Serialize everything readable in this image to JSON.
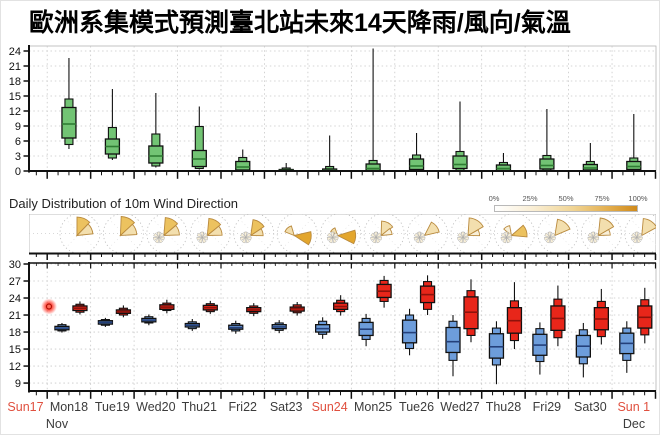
{
  "title": "歐洲系集模式預測臺北站未來14天降雨/風向/氣溫",
  "colors": {
    "precip_box": "#72c474",
    "precip_median": "#2f7d33",
    "temp_min": "#6d9ddb",
    "temp_min_median": "#24407a",
    "temp_max": "#e8261a",
    "temp_max_median": "#8e120b",
    "sunday_label": "#e0503f",
    "weekday_label": "#3c3c3c",
    "rose_lighter": "#f8efd8",
    "rose_light": "#f3dfae",
    "rose_mid": "#ecc25f",
    "rose_dark": "#e3a62d",
    "grid": "#c8c8c8",
    "obs_dot": "#ff2a1c"
  },
  "x_axis": {
    "days": [
      {
        "label": "Sun17",
        "sunday": true
      },
      {
        "label": "Mon18",
        "sunday": false
      },
      {
        "label": "Tue19",
        "sunday": false
      },
      {
        "label": "Wed20",
        "sunday": false
      },
      {
        "label": "Thu21",
        "sunday": false
      },
      {
        "label": "Fri22",
        "sunday": false
      },
      {
        "label": "Sat23",
        "sunday": false
      },
      {
        "label": "Sun24",
        "sunday": true
      },
      {
        "label": "Mon25",
        "sunday": false
      },
      {
        "label": "Tue26",
        "sunday": false
      },
      {
        "label": "Wed27",
        "sunday": false
      },
      {
        "label": "Thu28",
        "sunday": false
      },
      {
        "label": "Fri29",
        "sunday": false
      },
      {
        "label": "Sat30",
        "sunday": false
      },
      {
        "label": "Sun 1",
        "sunday": true
      }
    ],
    "month_left": "Nov",
    "month_right": "Dec"
  },
  "wind_panel": {
    "label": "Daily Distribution of 10m Wind Direction",
    "legend_labels": [
      "0%",
      "25%",
      "50%",
      "75%",
      "100%"
    ]
  },
  "chart_data": [
    {
      "type": "boxplot",
      "name": "ensemble-precipitation",
      "ylim": [
        0,
        24
      ],
      "yticks": [
        0,
        3,
        6,
        9,
        12,
        15,
        18,
        21,
        24
      ],
      "grid": true,
      "categories": [
        "Mon18",
        "Tue19",
        "Wed20",
        "Thu21",
        "Fri22",
        "Sat23",
        "Sun24",
        "Mon25",
        "Tue26",
        "Wed27",
        "Thu28",
        "Fri29",
        "Sat30",
        "Sun 1"
      ],
      "box_format": [
        "whisker_low",
        "p10",
        "p25",
        "median",
        "p75",
        "p90",
        "whisker_high"
      ],
      "boxes": [
        [
          4.4,
          5.3,
          6.6,
          9.4,
          12.7,
          14.4,
          22.6
        ],
        [
          2.2,
          2.6,
          3.4,
          4.9,
          6.4,
          8.7,
          16.4
        ],
        [
          0.7,
          1.0,
          1.6,
          3.0,
          5.0,
          7.4,
          15.6
        ],
        [
          0.3,
          0.5,
          0.9,
          2.4,
          4.1,
          8.9,
          12.9
        ],
        [
          0.0,
          0.0,
          0.2,
          0.8,
          1.9,
          2.7,
          4.3
        ],
        [
          0.0,
          0.0,
          0.0,
          0.1,
          0.3,
          0.6,
          1.6
        ],
        [
          0.0,
          0.0,
          0.0,
          0.1,
          0.4,
          0.9,
          7.1
        ],
        [
          0.0,
          0.0,
          0.1,
          0.5,
          1.4,
          2.1,
          24.5
        ],
        [
          0.0,
          0.0,
          0.3,
          1.0,
          2.4,
          3.2,
          7.6
        ],
        [
          0.0,
          0.1,
          0.5,
          1.3,
          3.0,
          3.9,
          13.9
        ],
        [
          0.0,
          0.0,
          0.1,
          0.5,
          1.2,
          1.7,
          3.6
        ],
        [
          0.0,
          0.1,
          0.4,
          1.1,
          2.4,
          3.1,
          12.4
        ],
        [
          0.0,
          0.0,
          0.2,
          0.6,
          1.3,
          1.9,
          5.6
        ],
        [
          0.0,
          0.1,
          0.3,
          0.9,
          1.9,
          2.6,
          11.4
        ]
      ]
    },
    {
      "type": "windrose",
      "name": "wind-direction-10m",
      "legend_range": [
        "0%",
        "100%"
      ],
      "days": [
        {
          "label": "Mon18",
          "rosette": false,
          "petals": [
            {
              "dir": 22,
              "spread": 44,
              "r": 0.92,
              "level": "mid"
            },
            {
              "dir": 64,
              "spread": 40,
              "r": 0.8,
              "level": "light"
            }
          ]
        },
        {
          "label": "Tue19",
          "rosette": false,
          "petals": [
            {
              "dir": 25,
              "spread": 45,
              "r": 0.95,
              "level": "mid"
            },
            {
              "dir": 67,
              "spread": 40,
              "r": 0.82,
              "level": "light"
            }
          ]
        },
        {
          "label": "Wed20",
          "rosette": true,
          "petals": [
            {
              "dir": 27,
              "spread": 45,
              "r": 0.9,
              "level": "mid"
            },
            {
              "dir": 69,
              "spread": 38,
              "r": 0.78,
              "level": "light"
            }
          ]
        },
        {
          "label": "Thu21",
          "rosette": true,
          "petals": [
            {
              "dir": 28,
              "spread": 45,
              "r": 0.86,
              "level": "mid"
            },
            {
              "dir": 70,
              "spread": 38,
              "r": 0.74,
              "level": "light"
            }
          ]
        },
        {
          "label": "Fri22",
          "rosette": true,
          "petals": [
            {
              "dir": 32,
              "spread": 48,
              "r": 0.8,
              "level": "mid"
            },
            {
              "dir": 74,
              "spread": 34,
              "r": 0.62,
              "level": "light"
            }
          ]
        },
        {
          "label": "Sat23",
          "rosette": false,
          "petals": [
            {
              "dir": 318,
              "spread": 52,
              "r": 0.5,
              "level": "light"
            },
            {
              "dir": 100,
              "spread": 46,
              "r": 0.85,
              "level": "dark"
            }
          ]
        },
        {
          "label": "Sun24",
          "rosette": true,
          "petals": [
            {
              "dir": 320,
              "spread": 42,
              "r": 0.4,
              "level": "light"
            },
            {
              "dir": 95,
              "spread": 44,
              "r": 0.9,
              "level": "dark"
            }
          ]
        },
        {
          "label": "Mon25",
          "rosette": true,
          "petals": [
            {
              "dir": 28,
              "spread": 52,
              "r": 0.72,
              "level": "light"
            },
            {
              "dir": 68,
              "spread": 34,
              "r": 0.55,
              "level": "lighter"
            }
          ]
        },
        {
          "label": "Tue26",
          "rosette": true,
          "petals": [
            {
              "dir": 52,
              "spread": 50,
              "r": 0.75,
              "level": "light"
            }
          ]
        },
        {
          "label": "Wed27",
          "rosette": true,
          "petals": [
            {
              "dir": 32,
              "spread": 56,
              "r": 0.88,
              "level": "light"
            },
            {
              "dir": 76,
              "spread": 30,
              "r": 0.58,
              "level": "lighter"
            }
          ]
        },
        {
          "label": "Thu28",
          "rosette": true,
          "petals": [
            {
              "dir": 330,
              "spread": 40,
              "r": 0.5,
              "level": "lighter"
            },
            {
              "dir": 72,
              "spread": 46,
              "r": 0.78,
              "level": "mid"
            }
          ]
        },
        {
          "label": "Fri29",
          "rosette": true,
          "petals": [
            {
              "dir": 38,
              "spread": 58,
              "r": 0.82,
              "level": "light"
            }
          ]
        },
        {
          "label": "Sat30",
          "rosette": true,
          "petals": [
            {
              "dir": 33,
              "spread": 54,
              "r": 0.88,
              "level": "light"
            },
            {
              "dir": 74,
              "spread": 28,
              "r": 0.6,
              "level": "lighter"
            }
          ]
        },
        {
          "label": "Sun 1",
          "rosette": true,
          "petals": [
            {
              "dir": 33,
              "spread": 56,
              "r": 0.85,
              "level": "light"
            }
          ]
        }
      ]
    },
    {
      "type": "boxplot",
      "name": "ensemble-temperature-2m",
      "ylim": [
        9,
        30
      ],
      "yticks": [
        9,
        12,
        15,
        18,
        21,
        24,
        27,
        30
      ],
      "grid": true,
      "categories": [
        "Sun17",
        "Mon18",
        "Tue19",
        "Wed20",
        "Thu21",
        "Fri22",
        "Sat23",
        "Sun24",
        "Mon25",
        "Tue26",
        "Wed27",
        "Thu28",
        "Fri29",
        "Sat30",
        "Sun 1"
      ],
      "box_format": [
        "whisker_low",
        "p10",
        "p25",
        "median",
        "p75",
        "p90",
        "whisker_high"
      ],
      "observation": {
        "day": "Sun17",
        "value": 22.5
      },
      "series": [
        {
          "name": "daily-min",
          "color": "#6d9ddb",
          "boxes": [
            null,
            [
              17.9,
              18.2,
              18.4,
              18.7,
              19.0,
              19.3,
              19.6
            ],
            [
              18.9,
              19.2,
              19.4,
              19.7,
              20.0,
              20.2,
              20.5
            ],
            [
              19.2,
              19.6,
              19.8,
              20.1,
              20.4,
              20.7,
              21.1
            ],
            [
              18.2,
              18.6,
              18.9,
              19.2,
              19.5,
              19.8,
              20.3
            ],
            [
              17.7,
              18.2,
              18.5,
              18.8,
              19.2,
              19.5,
              20.0
            ],
            [
              17.8,
              18.3,
              18.6,
              18.9,
              19.3,
              19.6,
              20.1
            ],
            [
              16.8,
              17.6,
              18.0,
              18.6,
              19.3,
              19.9,
              20.6
            ],
            [
              15.5,
              16.7,
              17.4,
              18.5,
              19.7,
              20.4,
              21.2
            ],
            [
              13.9,
              15.1,
              16.1,
              17.9,
              20.1,
              21.0,
              22.1
            ],
            [
              10.2,
              13.0,
              14.4,
              16.3,
              18.8,
              19.9,
              21.0
            ],
            [
              8.8,
              12.2,
              13.4,
              15.4,
              17.7,
              18.7,
              19.9
            ],
            [
              10.5,
              12.8,
              13.9,
              15.7,
              17.6,
              18.6,
              19.7
            ],
            [
              10.0,
              12.4,
              13.6,
              15.5,
              17.4,
              18.4,
              19.6
            ],
            [
              10.8,
              13.0,
              14.2,
              16.0,
              17.8,
              18.7,
              19.9
            ]
          ]
        },
        {
          "name": "daily-max",
          "color": "#e8261a",
          "boxes": [
            null,
            [
              21.1,
              21.5,
              21.8,
              22.2,
              22.6,
              22.9,
              23.4
            ],
            [
              20.6,
              21.0,
              21.3,
              21.6,
              21.9,
              22.2,
              22.7
            ],
            [
              21.3,
              21.8,
              22.0,
              22.4,
              22.8,
              23.1,
              23.7
            ],
            [
              21.2,
              21.6,
              21.9,
              22.3,
              22.7,
              23.0,
              23.5
            ],
            [
              20.8,
              21.3,
              21.6,
              21.9,
              22.3,
              22.6,
              23.1
            ],
            [
              20.9,
              21.4,
              21.7,
              22.1,
              22.4,
              22.8,
              23.3
            ],
            [
              20.9,
              21.6,
              22.0,
              22.5,
              23.1,
              23.6,
              24.5
            ],
            [
              22.3,
              23.4,
              24.1,
              25.2,
              26.4,
              27.1,
              27.9
            ],
            [
              21.0,
              22.0,
              23.2,
              24.6,
              26.1,
              26.9,
              28.0
            ],
            [
              16.2,
              17.4,
              18.6,
              21.5,
              24.2,
              25.3,
              27.3
            ],
            [
              15.0,
              16.5,
              17.8,
              20.0,
              22.3,
              23.5,
              26.8
            ],
            [
              15.5,
              17.0,
              18.3,
              20.4,
              22.6,
              23.8,
              26.2
            ],
            [
              15.8,
              17.2,
              18.4,
              20.3,
              22.3,
              23.4,
              25.6
            ],
            [
              16.0,
              17.5,
              18.7,
              20.6,
              22.6,
              23.7,
              25.8
            ]
          ]
        }
      ]
    }
  ]
}
